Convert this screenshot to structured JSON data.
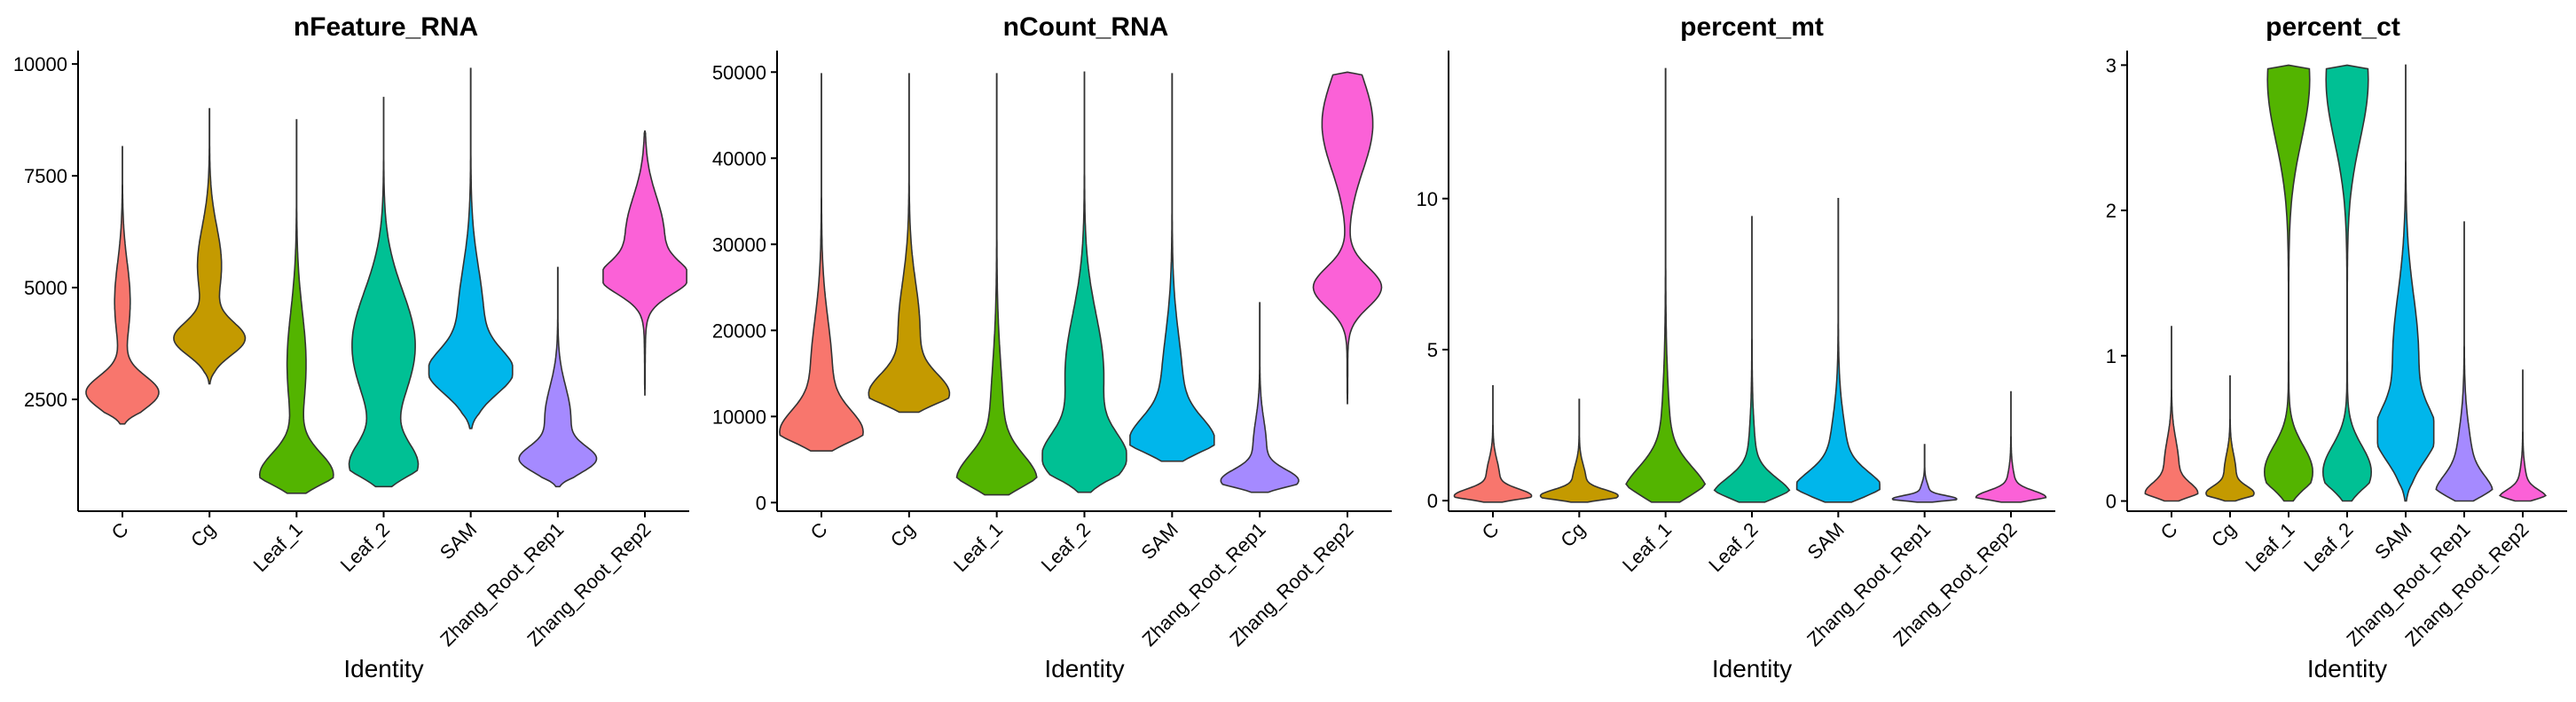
{
  "chart_data": [
    {
      "type": "violin",
      "title": "nFeature_RNA",
      "xlabel": "Identity",
      "ylabel": "",
      "categories": [
        "C",
        "Cg",
        "Leaf_1",
        "Leaf_2",
        "SAM",
        "Zhang_Root_Rep1",
        "Zhang_Root_Rep2"
      ],
      "colors": [
        "#F8766D",
        "#C49A00",
        "#53B400",
        "#00C094",
        "#00B6EB",
        "#A58AFF",
        "#FB61D7"
      ],
      "ylim": [
        0,
        10300
      ],
      "yticks": [
        2500,
        5000,
        7500,
        10000
      ],
      "violins": [
        {
          "min": 1950,
          "max": 8150,
          "peak": 2650,
          "peak_width": 0.85,
          "shoulder": 4700,
          "shoulder_width": 0.18
        },
        {
          "min": 2850,
          "max": 9000,
          "peak": 3850,
          "peak_width": 0.8,
          "shoulder": 5500,
          "shoulder_width": 0.28
        },
        {
          "min": 400,
          "max": 8750,
          "peak": 800,
          "peak_width": 0.85,
          "shoulder": 3300,
          "shoulder_width": 0.22
        },
        {
          "min": 550,
          "max": 9250,
          "peak": 1000,
          "peak_width": 0.75,
          "shoulder": 3700,
          "shoulder_width": 0.75
        },
        {
          "min": 1850,
          "max": 9900,
          "peak": 3100,
          "peak_width": 0.85,
          "shoulder": 4300,
          "shoulder_width": 0.3
        },
        {
          "min": 550,
          "max": 5450,
          "peak": 1150,
          "peak_width": 0.8,
          "shoulder": 2100,
          "shoulder_width": 0.3
        },
        {
          "min": 2600,
          "max": 8500,
          "peak": 5200,
          "peak_width": 0.85,
          "shoulder": 6200,
          "shoulder_width": 0.45
        }
      ]
    },
    {
      "type": "violin",
      "title": "nCount_RNA",
      "xlabel": "Identity",
      "ylabel": "",
      "categories": [
        "C",
        "Cg",
        "Leaf_1",
        "Leaf_2",
        "SAM",
        "Zhang_Root_Rep1",
        "Zhang_Root_Rep2"
      ],
      "colors": [
        "#F8766D",
        "#C49A00",
        "#53B400",
        "#00C094",
        "#00B6EB",
        "#A58AFF",
        "#FB61D7"
      ],
      "ylim": [
        -1000,
        52500
      ],
      "yticks": [
        0,
        10000,
        20000,
        30000,
        40000,
        50000
      ],
      "violins": [
        {
          "min": 6000,
          "max": 49800,
          "peak": 8000,
          "peak_width": 0.85,
          "shoulder": 15000,
          "shoulder_width": 0.25
        },
        {
          "min": 10500,
          "max": 49800,
          "peak": 12500,
          "peak_width": 0.85,
          "shoulder": 20000,
          "shoulder_width": 0.25
        },
        {
          "min": 900,
          "max": 49800,
          "peak": 2500,
          "peak_width": 0.85,
          "shoulder": 9000,
          "shoulder_width": 0.15
        },
        {
          "min": 1200,
          "max": 50000,
          "peak": 5000,
          "peak_width": 0.85,
          "shoulder": 15000,
          "shoulder_width": 0.45
        },
        {
          "min": 4800,
          "max": 49800,
          "peak": 7000,
          "peak_width": 0.85,
          "shoulder": 13000,
          "shoulder_width": 0.25
        },
        {
          "min": 1200,
          "max": 23200,
          "peak": 2500,
          "peak_width": 0.85,
          "shoulder": 6500,
          "shoulder_width": 0.15
        },
        {
          "min": 11500,
          "max": 50000,
          "peak": 25000,
          "peak_width": 0.8,
          "shoulder": 44000,
          "shoulder_width": 0.6
        }
      ]
    },
    {
      "type": "violin",
      "title": "percent_mt",
      "xlabel": "Identity",
      "ylabel": "",
      "categories": [
        "C",
        "Cg",
        "Leaf_1",
        "Leaf_2",
        "SAM",
        "Zhang_Root_Rep1",
        "Zhang_Root_Rep2"
      ],
      "colors": [
        "#F8766D",
        "#C49A00",
        "#53B400",
        "#00C094",
        "#00B6EB",
        "#A58AFF",
        "#FB61D7"
      ],
      "ylim": [
        -0.35,
        14.9
      ],
      "yticks": [
        0,
        5,
        10
      ],
      "violins": [
        {
          "min": -0.05,
          "max": 3.8,
          "peak": 0.15,
          "peak_width": 0.85,
          "shoulder": 0.8,
          "shoulder_width": 0.15
        },
        {
          "min": -0.05,
          "max": 3.35,
          "peak": 0.15,
          "peak_width": 0.85,
          "shoulder": 0.7,
          "shoulder_width": 0.15
        },
        {
          "min": -0.05,
          "max": 14.3,
          "peak": 0.2,
          "peak_width": 0.9,
          "shoulder": 1.2,
          "shoulder_width": 0.12
        },
        {
          "min": -0.05,
          "max": 9.4,
          "peak": 0.15,
          "peak_width": 0.85,
          "shoulder": 0.8,
          "shoulder_width": 0.1
        },
        {
          "min": -0.05,
          "max": 10.0,
          "peak": 0.3,
          "peak_width": 0.9,
          "shoulder": 1.2,
          "shoulder_width": 0.22
        },
        {
          "min": -0.05,
          "max": 1.85,
          "peak": 0.05,
          "peak_width": 0.7,
          "shoulder": 0.3,
          "shoulder_width": 0.1
        },
        {
          "min": -0.05,
          "max": 3.6,
          "peak": 0.1,
          "peak_width": 0.75,
          "shoulder": 0.4,
          "shoulder_width": 0.1
        }
      ]
    },
    {
      "type": "violin",
      "title": "percent_ct",
      "xlabel": "Identity",
      "ylabel": "",
      "categories": [
        "C",
        "Cg",
        "Leaf_1",
        "Leaf_2",
        "SAM",
        "Zhang_Root_Rep1",
        "Zhang_Root_Rep2"
      ],
      "colors": [
        "#F8766D",
        "#C49A00",
        "#53B400",
        "#00C094",
        "#00B6EB",
        "#A58AFF",
        "#FB61D7"
      ],
      "ylim": [
        -0.07,
        3.1
      ],
      "yticks": [
        0,
        1,
        2,
        3
      ],
      "violins": [
        {
          "min": 0.0,
          "max": 1.2,
          "peak": 0.05,
          "peak_width": 0.8,
          "shoulder": 0.25,
          "shoulder_width": 0.25
        },
        {
          "min": 0.0,
          "max": 0.86,
          "peak": 0.05,
          "peak_width": 0.75,
          "shoulder": 0.2,
          "shoulder_width": 0.2
        },
        {
          "min": 0.0,
          "max": 3.0,
          "peak": 0.2,
          "peak_width": 0.85,
          "shoulder": 2.9,
          "shoulder_width": 0.75
        },
        {
          "min": 0.0,
          "max": 3.0,
          "peak": 0.2,
          "peak_width": 0.85,
          "shoulder": 2.9,
          "shoulder_width": 0.75
        },
        {
          "min": 0.0,
          "max": 3.0,
          "peak": 0.45,
          "peak_width": 0.9,
          "shoulder": 1.0,
          "shoulder_width": 0.45
        },
        {
          "min": 0.0,
          "max": 1.92,
          "peak": 0.05,
          "peak_width": 0.75,
          "shoulder": 0.2,
          "shoulder_width": 0.3
        },
        {
          "min": 0.0,
          "max": 0.9,
          "peak": 0.02,
          "peak_width": 0.7,
          "shoulder": 0.08,
          "shoulder_width": 0.15
        }
      ]
    }
  ]
}
